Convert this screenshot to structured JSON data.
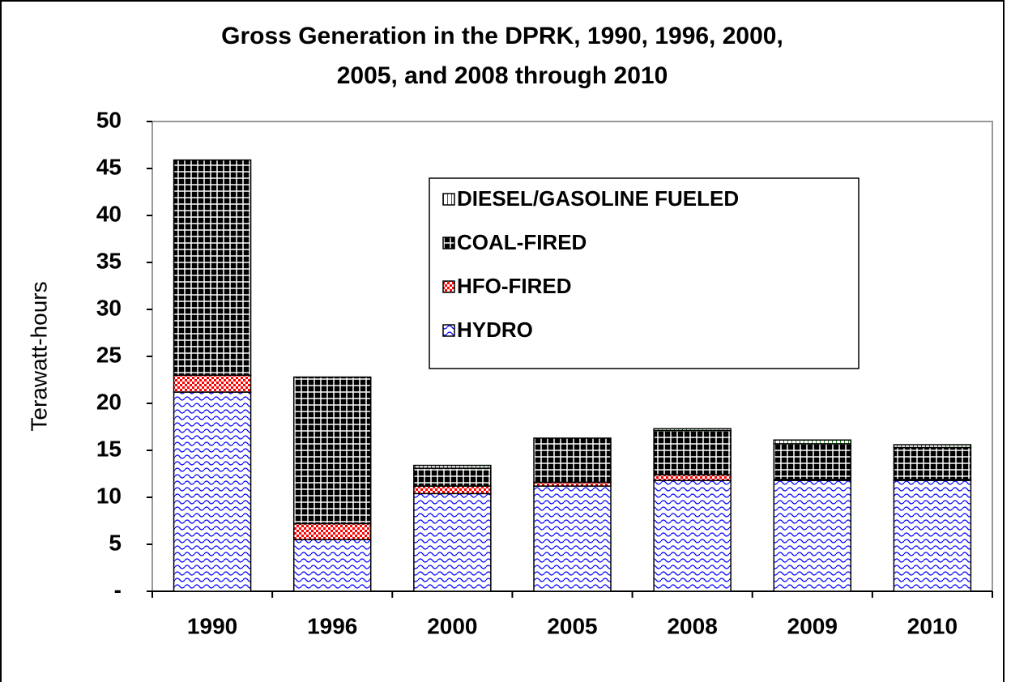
{
  "chart_data": {
    "type": "stacked_bar",
    "title": [
      "Gross Generation in the DPRK, 1990, 1996, 2000,",
      "2005, and 2008 through 2010"
    ],
    "y_label": "Terawatt-hours",
    "categories": [
      "1990",
      "1996",
      "2000",
      "2005",
      "2008",
      "2009",
      "2010"
    ],
    "series": [
      {
        "name": "DIESEL/GASOLINE FUELED",
        "color": "#1a7a1a",
        "pattern": "vlines",
        "values": [
          0,
          0,
          0.3,
          0,
          0.2,
          0.4,
          0.3
        ]
      },
      {
        "name": "COAL-FIRED",
        "color": "#000000",
        "pattern": "grid",
        "values": [
          22.9,
          15.6,
          1.9,
          4.7,
          4.7,
          3.8,
          3.4
        ]
      },
      {
        "name": "HFO-FIRED",
        "color": "#ff0000",
        "pattern": "dots",
        "values": [
          1.8,
          1.7,
          0.8,
          0.4,
          0.6,
          0.1,
          0.1
        ]
      },
      {
        "name": "HYDRO",
        "color": "#0000ff",
        "pattern": "wave",
        "values": [
          21.2,
          5.5,
          10.4,
          11.2,
          11.8,
          11.8,
          11.8
        ]
      }
    ],
    "ylim": [
      0,
      50
    ],
    "yticks": [
      {
        "value": 0,
        "label": "-"
      },
      5,
      10,
      15,
      20,
      25,
      30,
      35,
      40,
      45,
      50
    ],
    "legend": "upper right",
    "grid": false
  }
}
